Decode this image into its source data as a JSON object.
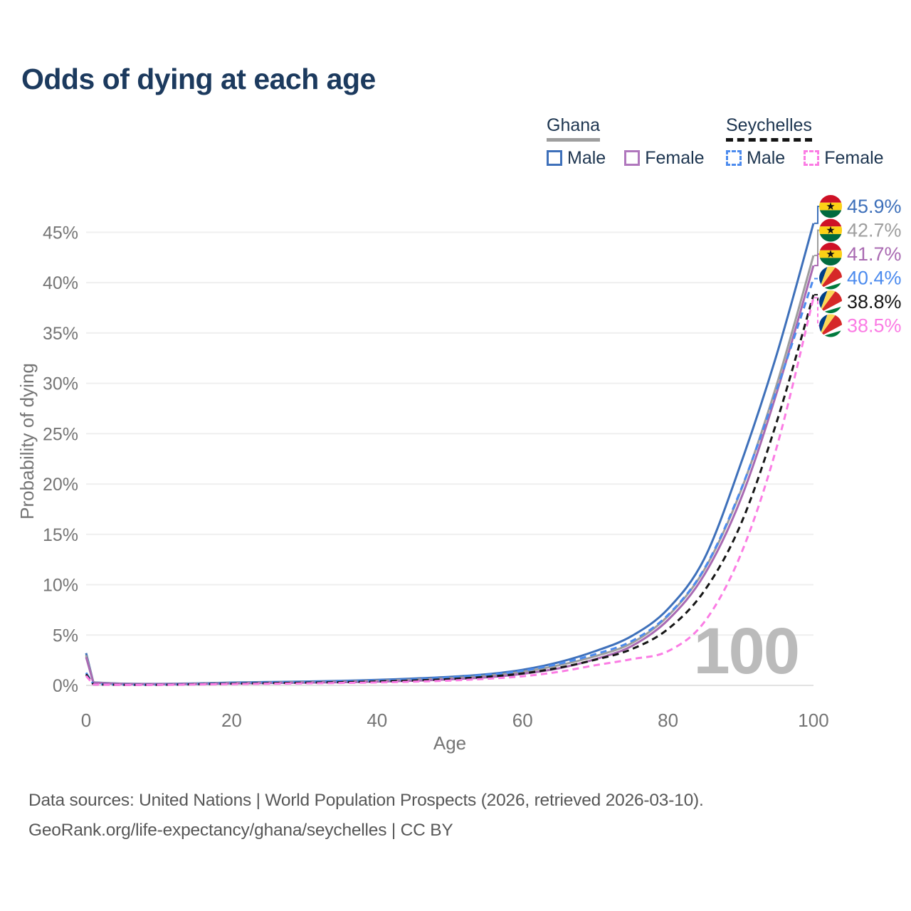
{
  "title": "Odds of dying at each age",
  "legend": {
    "groups": [
      {
        "label": "Ghana",
        "line_color": "#9e9e9e",
        "dashed": false,
        "items": [
          {
            "label": "Male",
            "color": "#3e70ba"
          },
          {
            "label": "Female",
            "color": "#b077bd"
          }
        ]
      },
      {
        "label": "Seychelles",
        "line_color": "#141414",
        "dashed": true,
        "items": [
          {
            "label": "Male",
            "color": "#4c8bee"
          },
          {
            "label": "Female",
            "color": "#fb7ce4"
          }
        ]
      }
    ]
  },
  "chart_data": {
    "type": "line",
    "title": "Odds of dying at each age",
    "xlabel": "Age",
    "ylabel": "Probability of dying",
    "x_ticks": [
      0,
      20,
      40,
      60,
      80,
      100
    ],
    "y_ticks_percent": [
      0,
      5,
      10,
      15,
      20,
      25,
      30,
      35,
      40,
      45
    ],
    "xlim": [
      0,
      100
    ],
    "ylim_percent": [
      0,
      47.5
    ],
    "grid": "horizontal-only",
    "legend_position": "top-right",
    "watermark": "100",
    "x": [
      0,
      1,
      5,
      10,
      15,
      20,
      25,
      30,
      35,
      40,
      45,
      50,
      55,
      60,
      65,
      70,
      75,
      80,
      85,
      90,
      95,
      100
    ],
    "series": [
      {
        "name": "Ghana — Male",
        "country": "Ghana",
        "sex": "Male",
        "style": "solid",
        "color": "#3e70ba",
        "flag": "ghana",
        "end_label": "45.9%",
        "values": [
          3.2,
          0.3,
          0.18,
          0.15,
          0.2,
          0.28,
          0.33,
          0.38,
          0.45,
          0.55,
          0.68,
          0.85,
          1.1,
          1.55,
          2.3,
          3.4,
          4.9,
          7.6,
          12.6,
          22.0,
          33.0,
          45.9
        ]
      },
      {
        "name": "Ghana — Both sexes",
        "country": "Ghana",
        "sex": "Both",
        "style": "solid",
        "color": "#9e9e9e",
        "flag": "ghana",
        "end_label": "42.7%",
        "values": [
          3.0,
          0.28,
          0.16,
          0.13,
          0.17,
          0.24,
          0.28,
          0.32,
          0.38,
          0.46,
          0.57,
          0.72,
          0.95,
          1.35,
          2.0,
          2.9,
          4.2,
          6.9,
          11.5,
          19.3,
          30.0,
          42.7
        ]
      },
      {
        "name": "Ghana — Female",
        "country": "Ghana",
        "sex": "Female",
        "style": "solid",
        "color": "#a96ab2",
        "flag": "ghana",
        "end_label": "41.7%",
        "values": [
          2.8,
          0.26,
          0.14,
          0.12,
          0.14,
          0.19,
          0.23,
          0.27,
          0.31,
          0.37,
          0.46,
          0.6,
          0.8,
          1.15,
          1.7,
          2.6,
          3.9,
          6.5,
          11.0,
          18.5,
          29.2,
          41.7
        ]
      },
      {
        "name": "Seychelles — Male",
        "country": "Seychelles",
        "sex": "Male",
        "style": "dashed",
        "color": "#4c8bee",
        "flag": "seychelles",
        "end_label": "40.4%",
        "values": [
          1.25,
          0.12,
          0.07,
          0.07,
          0.13,
          0.22,
          0.28,
          0.34,
          0.4,
          0.48,
          0.6,
          0.78,
          1.05,
          1.45,
          2.15,
          3.1,
          4.4,
          7.0,
          11.6,
          19.4,
          29.5,
          40.4
        ]
      },
      {
        "name": "Seychelles — Both sexes",
        "country": "Seychelles",
        "sex": "Both",
        "style": "dashed",
        "color": "#161616",
        "flag": "seychelles",
        "end_label": "38.8%",
        "values": [
          1.1,
          0.1,
          0.06,
          0.06,
          0.11,
          0.17,
          0.22,
          0.27,
          0.32,
          0.39,
          0.49,
          0.63,
          0.85,
          1.18,
          1.75,
          2.55,
          3.6,
          5.6,
          9.4,
          16.0,
          26.3,
          38.8
        ]
      },
      {
        "name": "Seychelles — Female",
        "country": "Seychelles",
        "sex": "Female",
        "style": "dashed",
        "color": "#fb7ce4",
        "flag": "seychelles",
        "end_label": "38.5%",
        "values": [
          0.95,
          0.09,
          0.05,
          0.05,
          0.09,
          0.13,
          0.16,
          0.2,
          0.24,
          0.29,
          0.37,
          0.48,
          0.65,
          0.9,
          1.35,
          2.0,
          2.6,
          3.4,
          6.3,
          13.0,
          23.8,
          38.5
        ]
      }
    ]
  },
  "footer": {
    "line1": "Data sources: United Nations | World Population Prospects (2026, retrieved 2026-03-10).",
    "line2": "GeoRank.org/life-expectancy/ghana/seychelles | CC BY"
  }
}
